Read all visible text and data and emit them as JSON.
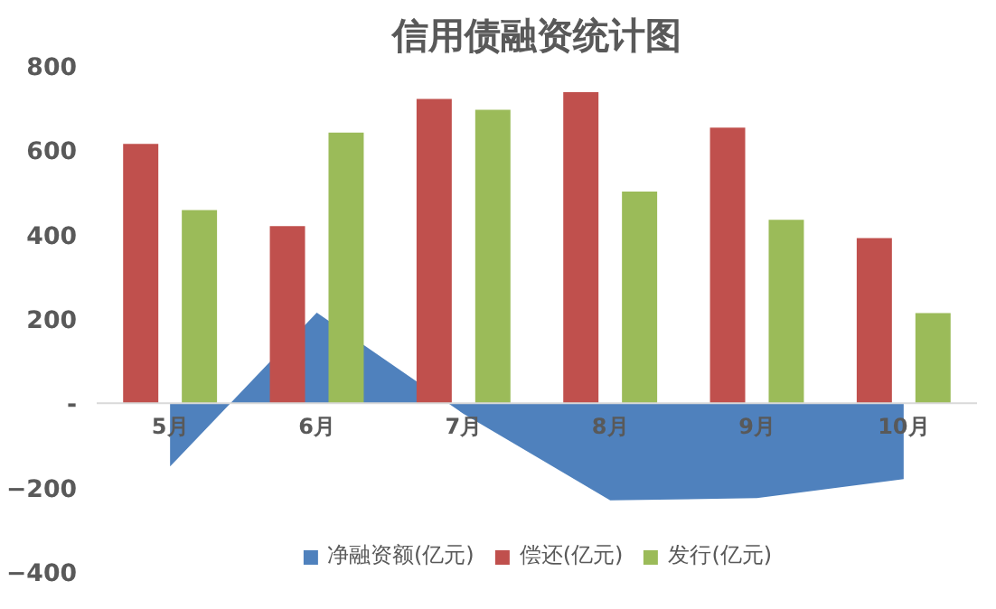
{
  "chart_data": {
    "type": "bar",
    "title": "信用债融资统计图",
    "categories": [
      "5月",
      "6月",
      "7月",
      "8月",
      "9月",
      "10月"
    ],
    "series": [
      {
        "name": "净融资额(亿元)",
        "type": "area",
        "color": "#4f81bd",
        "values": [
          -150,
          215,
          -25,
          -230,
          -225,
          -180
        ]
      },
      {
        "name": "偿还(亿元)",
        "color": "#c0504d",
        "values": [
          615,
          420,
          722,
          738,
          654,
          392
        ]
      },
      {
        "name": "发行(亿元)",
        "color": "#9bbb59",
        "values": [
          458,
          642,
          696,
          502,
          435,
          214
        ]
      }
    ],
    "ylim": [
      -400,
      800
    ],
    "yticks": [
      -400,
      -200,
      {
        "value": 0,
        "label": "-"
      },
      200,
      400,
      600,
      800
    ],
    "grid": false,
    "legend": "bottom"
  }
}
